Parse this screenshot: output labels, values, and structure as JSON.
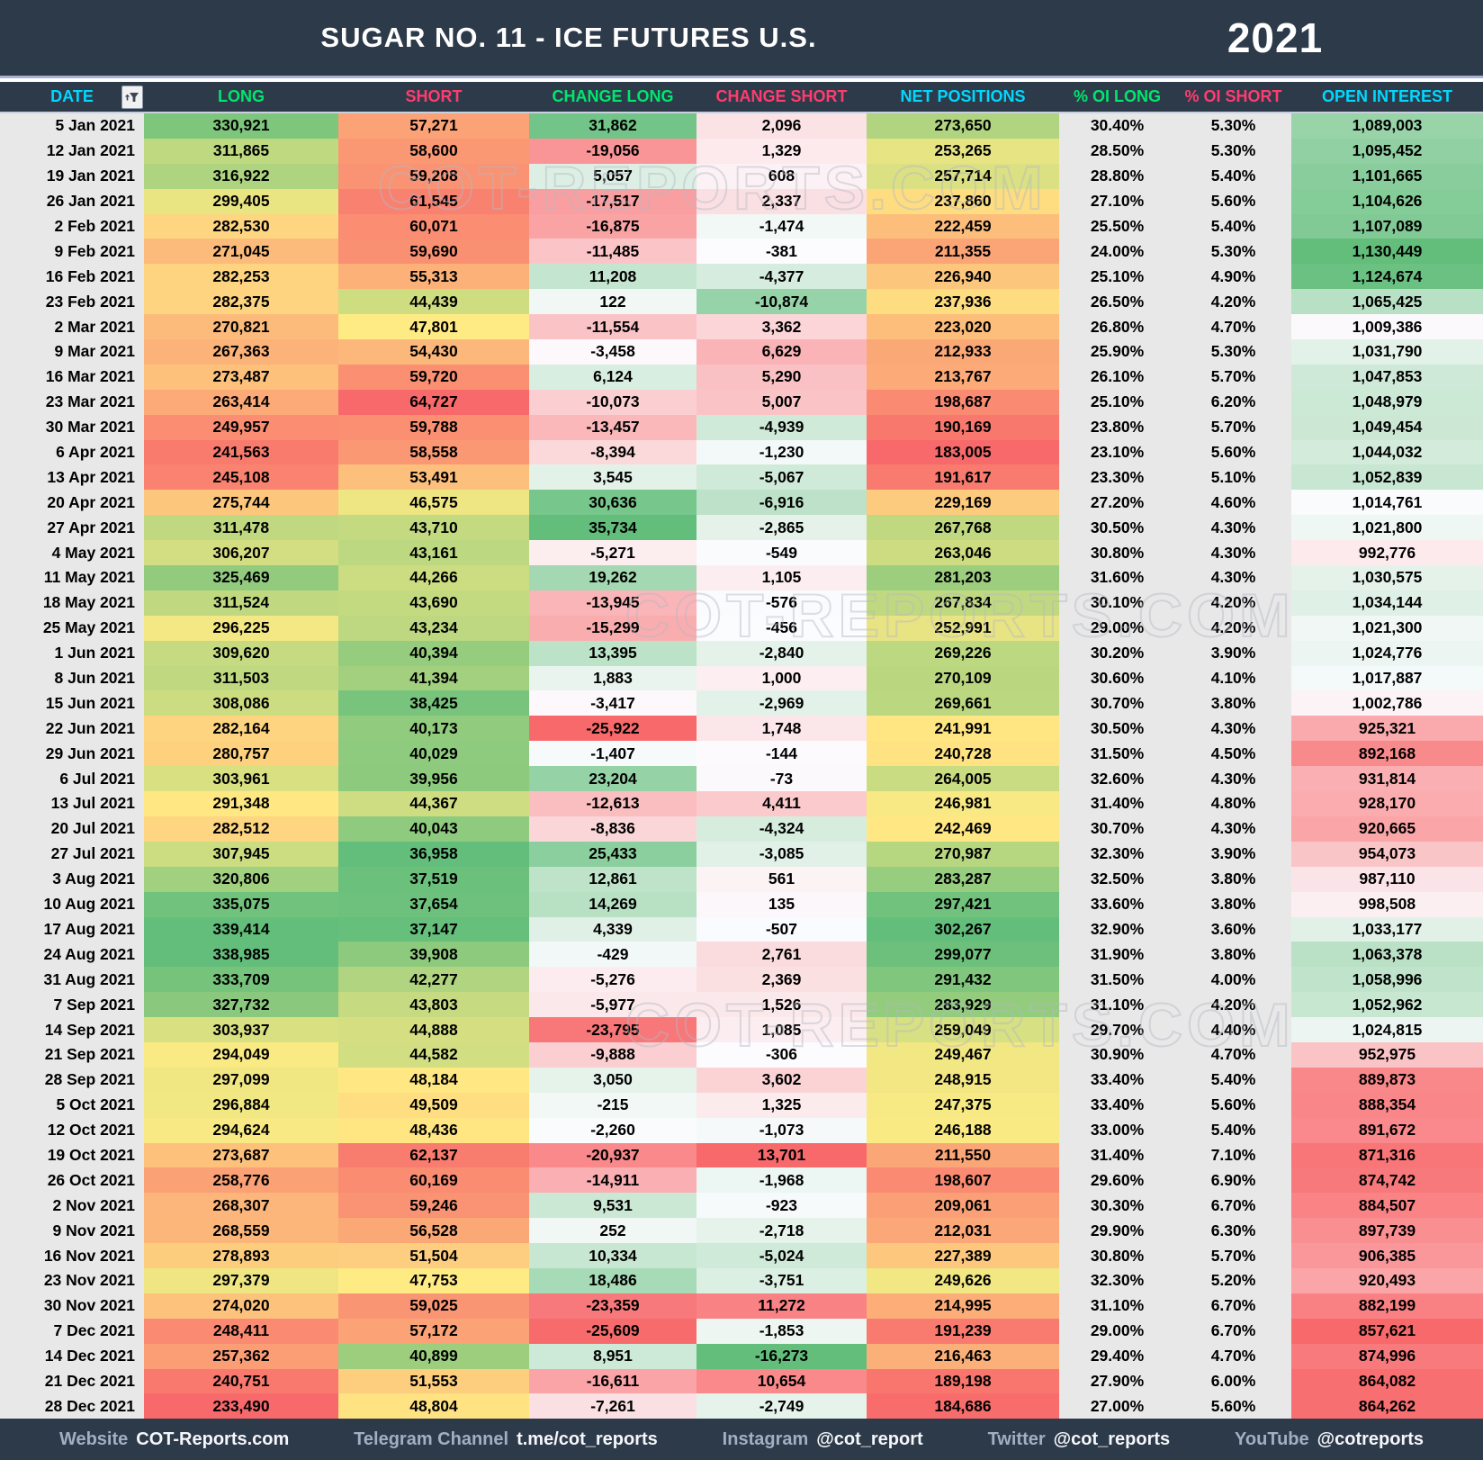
{
  "title": "SUGAR NO. 11 - ICE FUTURES U.S.",
  "year": "2021",
  "watermark": "COT-REPORTS.COM",
  "colors": {
    "bar_background": "#2d3a4a",
    "header_cyan": "#00d8ff",
    "header_green": "#00e66e",
    "header_pink": "#ff3c6e",
    "neutral_cell_gray": "#e8e8e8",
    "heatmap_red": "#f8696b",
    "heatmap_yellow": "#ffeb84",
    "heatmap_white": "#fcfcff",
    "heatmap_green": "#63be7b"
  },
  "columns": [
    {
      "key": "date",
      "label": "DATE",
      "header_color": "#00d8ff",
      "scale": "none",
      "align": "right"
    },
    {
      "key": "long",
      "label": "LONG",
      "header_color": "#00e66e",
      "scale": "ryg",
      "align": "center"
    },
    {
      "key": "short",
      "label": "SHORT",
      "header_color": "#ff3c6e",
      "scale": "ryg-invert",
      "align": "center"
    },
    {
      "key": "change_long",
      "label": "CHANGE LONG",
      "header_color": "#00e66e",
      "scale": "rwg",
      "align": "center"
    },
    {
      "key": "change_short",
      "label": "CHANGE SHORT",
      "header_color": "#ff3c6e",
      "scale": "rwg-invert",
      "align": "center"
    },
    {
      "key": "net_positions",
      "label": "NET POSITIONS",
      "header_color": "#00d8ff",
      "scale": "ryg",
      "align": "center"
    },
    {
      "key": "oi_long",
      "label": "% OI LONG",
      "header_color": "#00e66e",
      "scale": "none",
      "align": "center"
    },
    {
      "key": "oi_short",
      "label": "% OI SHORT",
      "header_color": "#ff3c6e",
      "scale": "none",
      "align": "center"
    },
    {
      "key": "open_interest",
      "label": "OPEN INTEREST",
      "header_color": "#00d8ff",
      "scale": "rwg",
      "align": "center"
    }
  ],
  "chart_data": {
    "type": "table",
    "title": "SUGAR NO. 11 - ICE FUTURES U.S. 2021",
    "columns": [
      "DATE",
      "LONG",
      "SHORT",
      "CHANGE LONG",
      "CHANGE SHORT",
      "NET POSITIONS",
      "% OI LONG",
      "% OI SHORT",
      "OPEN INTEREST"
    ],
    "rows": [
      [
        "5 Jan 2021",
        "330,921",
        "57,271",
        "31,862",
        "2,096",
        "273,650",
        "30.40%",
        "5.30%",
        "1,089,003"
      ],
      [
        "12 Jan 2021",
        "311,865",
        "58,600",
        "-19,056",
        "1,329",
        "253,265",
        "28.50%",
        "5.30%",
        "1,095,452"
      ],
      [
        "19 Jan 2021",
        "316,922",
        "59,208",
        "5,057",
        "608",
        "257,714",
        "28.80%",
        "5.40%",
        "1,101,665"
      ],
      [
        "26 Jan 2021",
        "299,405",
        "61,545",
        "-17,517",
        "2,337",
        "237,860",
        "27.10%",
        "5.60%",
        "1,104,626"
      ],
      [
        "2 Feb 2021",
        "282,530",
        "60,071",
        "-16,875",
        "-1,474",
        "222,459",
        "25.50%",
        "5.40%",
        "1,107,089"
      ],
      [
        "9 Feb 2021",
        "271,045",
        "59,690",
        "-11,485",
        "-381",
        "211,355",
        "24.00%",
        "5.30%",
        "1,130,449"
      ],
      [
        "16 Feb 2021",
        "282,253",
        "55,313",
        "11,208",
        "-4,377",
        "226,940",
        "25.10%",
        "4.90%",
        "1,124,674"
      ],
      [
        "23 Feb 2021",
        "282,375",
        "44,439",
        "122",
        "-10,874",
        "237,936",
        "26.50%",
        "4.20%",
        "1,065,425"
      ],
      [
        "2 Mar 2021",
        "270,821",
        "47,801",
        "-11,554",
        "3,362",
        "223,020",
        "26.80%",
        "4.70%",
        "1,009,386"
      ],
      [
        "9 Mar 2021",
        "267,363",
        "54,430",
        "-3,458",
        "6,629",
        "212,933",
        "25.90%",
        "5.30%",
        "1,031,790"
      ],
      [
        "16 Mar 2021",
        "273,487",
        "59,720",
        "6,124",
        "5,290",
        "213,767",
        "26.10%",
        "5.70%",
        "1,047,853"
      ],
      [
        "23 Mar 2021",
        "263,414",
        "64,727",
        "-10,073",
        "5,007",
        "198,687",
        "25.10%",
        "6.20%",
        "1,048,979"
      ],
      [
        "30 Mar 2021",
        "249,957",
        "59,788",
        "-13,457",
        "-4,939",
        "190,169",
        "23.80%",
        "5.70%",
        "1,049,454"
      ],
      [
        "6 Apr 2021",
        "241,563",
        "58,558",
        "-8,394",
        "-1,230",
        "183,005",
        "23.10%",
        "5.60%",
        "1,044,032"
      ],
      [
        "13 Apr 2021",
        "245,108",
        "53,491",
        "3,545",
        "-5,067",
        "191,617",
        "23.30%",
        "5.10%",
        "1,052,839"
      ],
      [
        "20 Apr 2021",
        "275,744",
        "46,575",
        "30,636",
        "-6,916",
        "229,169",
        "27.20%",
        "4.60%",
        "1,014,761"
      ],
      [
        "27 Apr 2021",
        "311,478",
        "43,710",
        "35,734",
        "-2,865",
        "267,768",
        "30.50%",
        "4.30%",
        "1,021,800"
      ],
      [
        "4 May 2021",
        "306,207",
        "43,161",
        "-5,271",
        "-549",
        "263,046",
        "30.80%",
        "4.30%",
        "992,776"
      ],
      [
        "11 May 2021",
        "325,469",
        "44,266",
        "19,262",
        "1,105",
        "281,203",
        "31.60%",
        "4.30%",
        "1,030,575"
      ],
      [
        "18 May 2021",
        "311,524",
        "43,690",
        "-13,945",
        "-576",
        "267,834",
        "30.10%",
        "4.20%",
        "1,034,144"
      ],
      [
        "25 May 2021",
        "296,225",
        "43,234",
        "-15,299",
        "-456",
        "252,991",
        "29.00%",
        "4.20%",
        "1,021,300"
      ],
      [
        "1 Jun 2021",
        "309,620",
        "40,394",
        "13,395",
        "-2,840",
        "269,226",
        "30.20%",
        "3.90%",
        "1,024,776"
      ],
      [
        "8 Jun 2021",
        "311,503",
        "41,394",
        "1,883",
        "1,000",
        "270,109",
        "30.60%",
        "4.10%",
        "1,017,887"
      ],
      [
        "15 Jun 2021",
        "308,086",
        "38,425",
        "-3,417",
        "-2,969",
        "269,661",
        "30.70%",
        "3.80%",
        "1,002,786"
      ],
      [
        "22 Jun 2021",
        "282,164",
        "40,173",
        "-25,922",
        "1,748",
        "241,991",
        "30.50%",
        "4.30%",
        "925,321"
      ],
      [
        "29 Jun 2021",
        "280,757",
        "40,029",
        "-1,407",
        "-144",
        "240,728",
        "31.50%",
        "4.50%",
        "892,168"
      ],
      [
        "6 Jul 2021",
        "303,961",
        "39,956",
        "23,204",
        "-73",
        "264,005",
        "32.60%",
        "4.30%",
        "931,814"
      ],
      [
        "13 Jul 2021",
        "291,348",
        "44,367",
        "-12,613",
        "4,411",
        "246,981",
        "31.40%",
        "4.80%",
        "928,170"
      ],
      [
        "20 Jul 2021",
        "282,512",
        "40,043",
        "-8,836",
        "-4,324",
        "242,469",
        "30.70%",
        "4.30%",
        "920,665"
      ],
      [
        "27 Jul 2021",
        "307,945",
        "36,958",
        "25,433",
        "-3,085",
        "270,987",
        "32.30%",
        "3.90%",
        "954,073"
      ],
      [
        "3 Aug 2021",
        "320,806",
        "37,519",
        "12,861",
        "561",
        "283,287",
        "32.50%",
        "3.80%",
        "987,110"
      ],
      [
        "10 Aug 2021",
        "335,075",
        "37,654",
        "14,269",
        "135",
        "297,421",
        "33.60%",
        "3.80%",
        "998,508"
      ],
      [
        "17 Aug 2021",
        "339,414",
        "37,147",
        "4,339",
        "-507",
        "302,267",
        "32.90%",
        "3.60%",
        "1,033,177"
      ],
      [
        "24 Aug 2021",
        "338,985",
        "39,908",
        "-429",
        "2,761",
        "299,077",
        "31.90%",
        "3.80%",
        "1,063,378"
      ],
      [
        "31 Aug 2021",
        "333,709",
        "42,277",
        "-5,276",
        "2,369",
        "291,432",
        "31.50%",
        "4.00%",
        "1,058,996"
      ],
      [
        "7 Sep 2021",
        "327,732",
        "43,803",
        "-5,977",
        "1,526",
        "283,929",
        "31.10%",
        "4.20%",
        "1,052,962"
      ],
      [
        "14 Sep 2021",
        "303,937",
        "44,888",
        "-23,795",
        "1,085",
        "259,049",
        "29.70%",
        "4.40%",
        "1,024,815"
      ],
      [
        "21 Sep 2021",
        "294,049",
        "44,582",
        "-9,888",
        "-306",
        "249,467",
        "30.90%",
        "4.70%",
        "952,975"
      ],
      [
        "28 Sep 2021",
        "297,099",
        "48,184",
        "3,050",
        "3,602",
        "248,915",
        "33.40%",
        "5.40%",
        "889,873"
      ],
      [
        "5 Oct 2021",
        "296,884",
        "49,509",
        "-215",
        "1,325",
        "247,375",
        "33.40%",
        "5.60%",
        "888,354"
      ],
      [
        "12 Oct 2021",
        "294,624",
        "48,436",
        "-2,260",
        "-1,073",
        "246,188",
        "33.00%",
        "5.40%",
        "891,672"
      ],
      [
        "19 Oct 2021",
        "273,687",
        "62,137",
        "-20,937",
        "13,701",
        "211,550",
        "31.40%",
        "7.10%",
        "871,316"
      ],
      [
        "26 Oct 2021",
        "258,776",
        "60,169",
        "-14,911",
        "-1,968",
        "198,607",
        "29.60%",
        "6.90%",
        "874,742"
      ],
      [
        "2 Nov 2021",
        "268,307",
        "59,246",
        "9,531",
        "-923",
        "209,061",
        "30.30%",
        "6.70%",
        "884,507"
      ],
      [
        "9 Nov 2021",
        "268,559",
        "56,528",
        "252",
        "-2,718",
        "212,031",
        "29.90%",
        "6.30%",
        "897,739"
      ],
      [
        "16 Nov 2021",
        "278,893",
        "51,504",
        "10,334",
        "-5,024",
        "227,389",
        "30.80%",
        "5.70%",
        "906,385"
      ],
      [
        "23 Nov 2021",
        "297,379",
        "47,753",
        "18,486",
        "-3,751",
        "249,626",
        "32.30%",
        "5.20%",
        "920,493"
      ],
      [
        "30 Nov 2021",
        "274,020",
        "59,025",
        "-23,359",
        "11,272",
        "214,995",
        "31.10%",
        "6.70%",
        "882,199"
      ],
      [
        "7 Dec 2021",
        "248,411",
        "57,172",
        "-25,609",
        "-1,853",
        "191,239",
        "29.00%",
        "6.70%",
        "857,621"
      ],
      [
        "14 Dec 2021",
        "257,362",
        "40,899",
        "8,951",
        "-16,273",
        "216,463",
        "29.40%",
        "4.70%",
        "874,996"
      ],
      [
        "21 Dec 2021",
        "240,751",
        "51,553",
        "-16,611",
        "10,654",
        "189,198",
        "27.90%",
        "6.00%",
        "864,082"
      ],
      [
        "28 Dec 2021",
        "233,490",
        "48,804",
        "-7,261",
        "-2,749",
        "184,686",
        "27.00%",
        "5.60%",
        "864,262"
      ]
    ]
  },
  "footer": {
    "items": [
      {
        "label": "Website",
        "value": "COT-Reports.com"
      },
      {
        "label": "Telegram Channel",
        "value": "t.me/cot_reports"
      },
      {
        "label": "Instagram",
        "value": "@cot_report"
      },
      {
        "label": "Twitter",
        "value": "@cot_reports"
      },
      {
        "label": "YouTube",
        "value": "@cotreports"
      }
    ]
  }
}
